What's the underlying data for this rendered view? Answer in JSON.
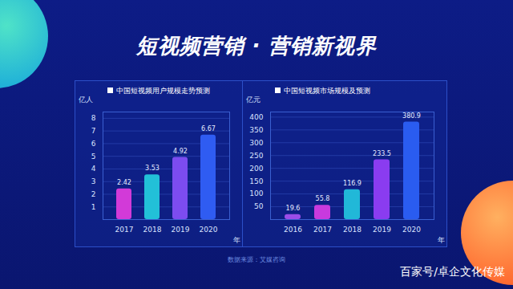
{
  "title": "短视频营销 · 营销新视界",
  "chart_data": [
    {
      "type": "bar",
      "title": "中国短视频用户规模走势预测",
      "y_label": "亿人",
      "x_label": "年",
      "categories": [
        "2017",
        "2018",
        "2019",
        "2020"
      ],
      "values": [
        2.42,
        3.53,
        4.92,
        6.67
      ],
      "colors": [
        "#d23ad8",
        "#22c0d8",
        "#7c4cf0",
        "#2f5cf2"
      ],
      "ylim": [
        0,
        8.5
      ],
      "yticks": [
        1,
        2,
        3,
        4,
        5,
        6,
        7,
        8
      ],
      "grid": true,
      "data_labels": true
    },
    {
      "type": "bar",
      "title": "中国短视频市场规模及预测",
      "y_label": "亿元",
      "x_label": "年",
      "categories": [
        "2016",
        "2017",
        "2018",
        "2019",
        "2020"
      ],
      "values": [
        19.6,
        55.8,
        116.9,
        233.5,
        380.9
      ],
      "colors": [
        "#9b4de8",
        "#c83ade",
        "#21b8d8",
        "#8a3cf0",
        "#2a5cf0"
      ],
      "ylim": [
        0,
        420
      ],
      "yticks": [
        50,
        100,
        150,
        200,
        250,
        300,
        350,
        400
      ],
      "grid": true,
      "data_labels": true
    }
  ],
  "source": "数据来源：艾媒咨询",
  "watermark": "百家号/卓企文化传媒"
}
